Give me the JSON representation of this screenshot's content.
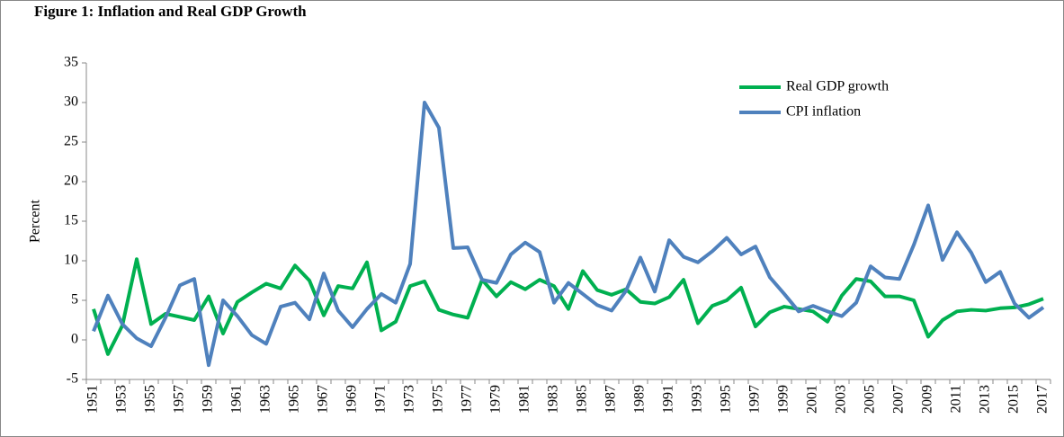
{
  "chart_data": {
    "type": "line",
    "title": "Figure 1: Inflation and Real GDP Growth",
    "ylabel": "Percent",
    "categories": [
      "1951",
      null,
      "1953",
      null,
      "1955",
      null,
      "1957",
      null,
      "1959",
      null,
      "1961",
      null,
      "1963",
      null,
      "1965",
      null,
      "1967",
      null,
      "1969",
      null,
      "1971",
      null,
      "1973",
      null,
      "1975",
      null,
      "1977",
      null,
      "1979",
      null,
      "1981",
      null,
      "1983",
      null,
      "1985",
      null,
      "1987",
      null,
      "1989",
      null,
      "1991",
      null,
      "1993",
      null,
      "1995",
      null,
      "1997",
      null,
      "1999",
      null,
      "2001",
      null,
      "2003",
      null,
      "2005",
      null,
      "2007",
      null,
      "2009",
      null,
      "2011",
      null,
      "2013",
      null,
      "2015",
      null,
      "2017"
    ],
    "series": [
      {
        "name": "Real GDP growth",
        "color": "#00b050",
        "values": [
          3.9,
          -1.8,
          1.8,
          10.2,
          2.0,
          3.3,
          2.9,
          2.5,
          5.5,
          0.8,
          4.8,
          6.0,
          7.1,
          6.5,
          9.4,
          7.5,
          3.1,
          6.8,
          6.5,
          9.8,
          1.2,
          2.3,
          6.8,
          7.4,
          3.8,
          3.2,
          2.8,
          7.6,
          5.5,
          7.3,
          6.4,
          7.6,
          6.8,
          3.9,
          8.7,
          6.3,
          5.7,
          6.4,
          4.8,
          4.6,
          5.4,
          7.6,
          2.1,
          4.3,
          5.0,
          6.6,
          1.7,
          3.5,
          4.2,
          3.9,
          3.6,
          2.3,
          5.6,
          7.7,
          7.4,
          5.5,
          5.5,
          5.0,
          0.4,
          2.5,
          3.6,
          3.8,
          3.7,
          4.0,
          4.1,
          4.5,
          5.2
        ]
      },
      {
        "name": "CPI inflation",
        "color": "#4f81bd",
        "values": [
          1.1,
          5.6,
          2.0,
          0.2,
          -0.8,
          2.8,
          6.9,
          7.7,
          -3.2,
          5.0,
          3.0,
          0.6,
          -0.5,
          4.2,
          4.7,
          2.6,
          8.4,
          3.7,
          1.6,
          3.9,
          5.8,
          4.7,
          9.6,
          30.0,
          26.8,
          11.6,
          11.7,
          7.6,
          7.2,
          10.8,
          12.3,
          11.1,
          4.7,
          7.2,
          5.8,
          4.4,
          3.7,
          6.2,
          10.4,
          6.1,
          12.6,
          10.5,
          9.8,
          11.2,
          12.9,
          10.8,
          11.8,
          7.9,
          5.8,
          3.6,
          4.3,
          3.6,
          3.0,
          4.7,
          9.3,
          7.9,
          7.7,
          12.0,
          17.0,
          10.1,
          13.6,
          11.0,
          7.3,
          8.6,
          4.6,
          2.8,
          4.1
        ]
      }
    ],
    "ylim": [
      -5,
      35
    ],
    "yticks": [
      -5,
      0,
      5,
      10,
      15,
      20,
      25,
      30,
      35
    ],
    "legend": "upper right"
  }
}
